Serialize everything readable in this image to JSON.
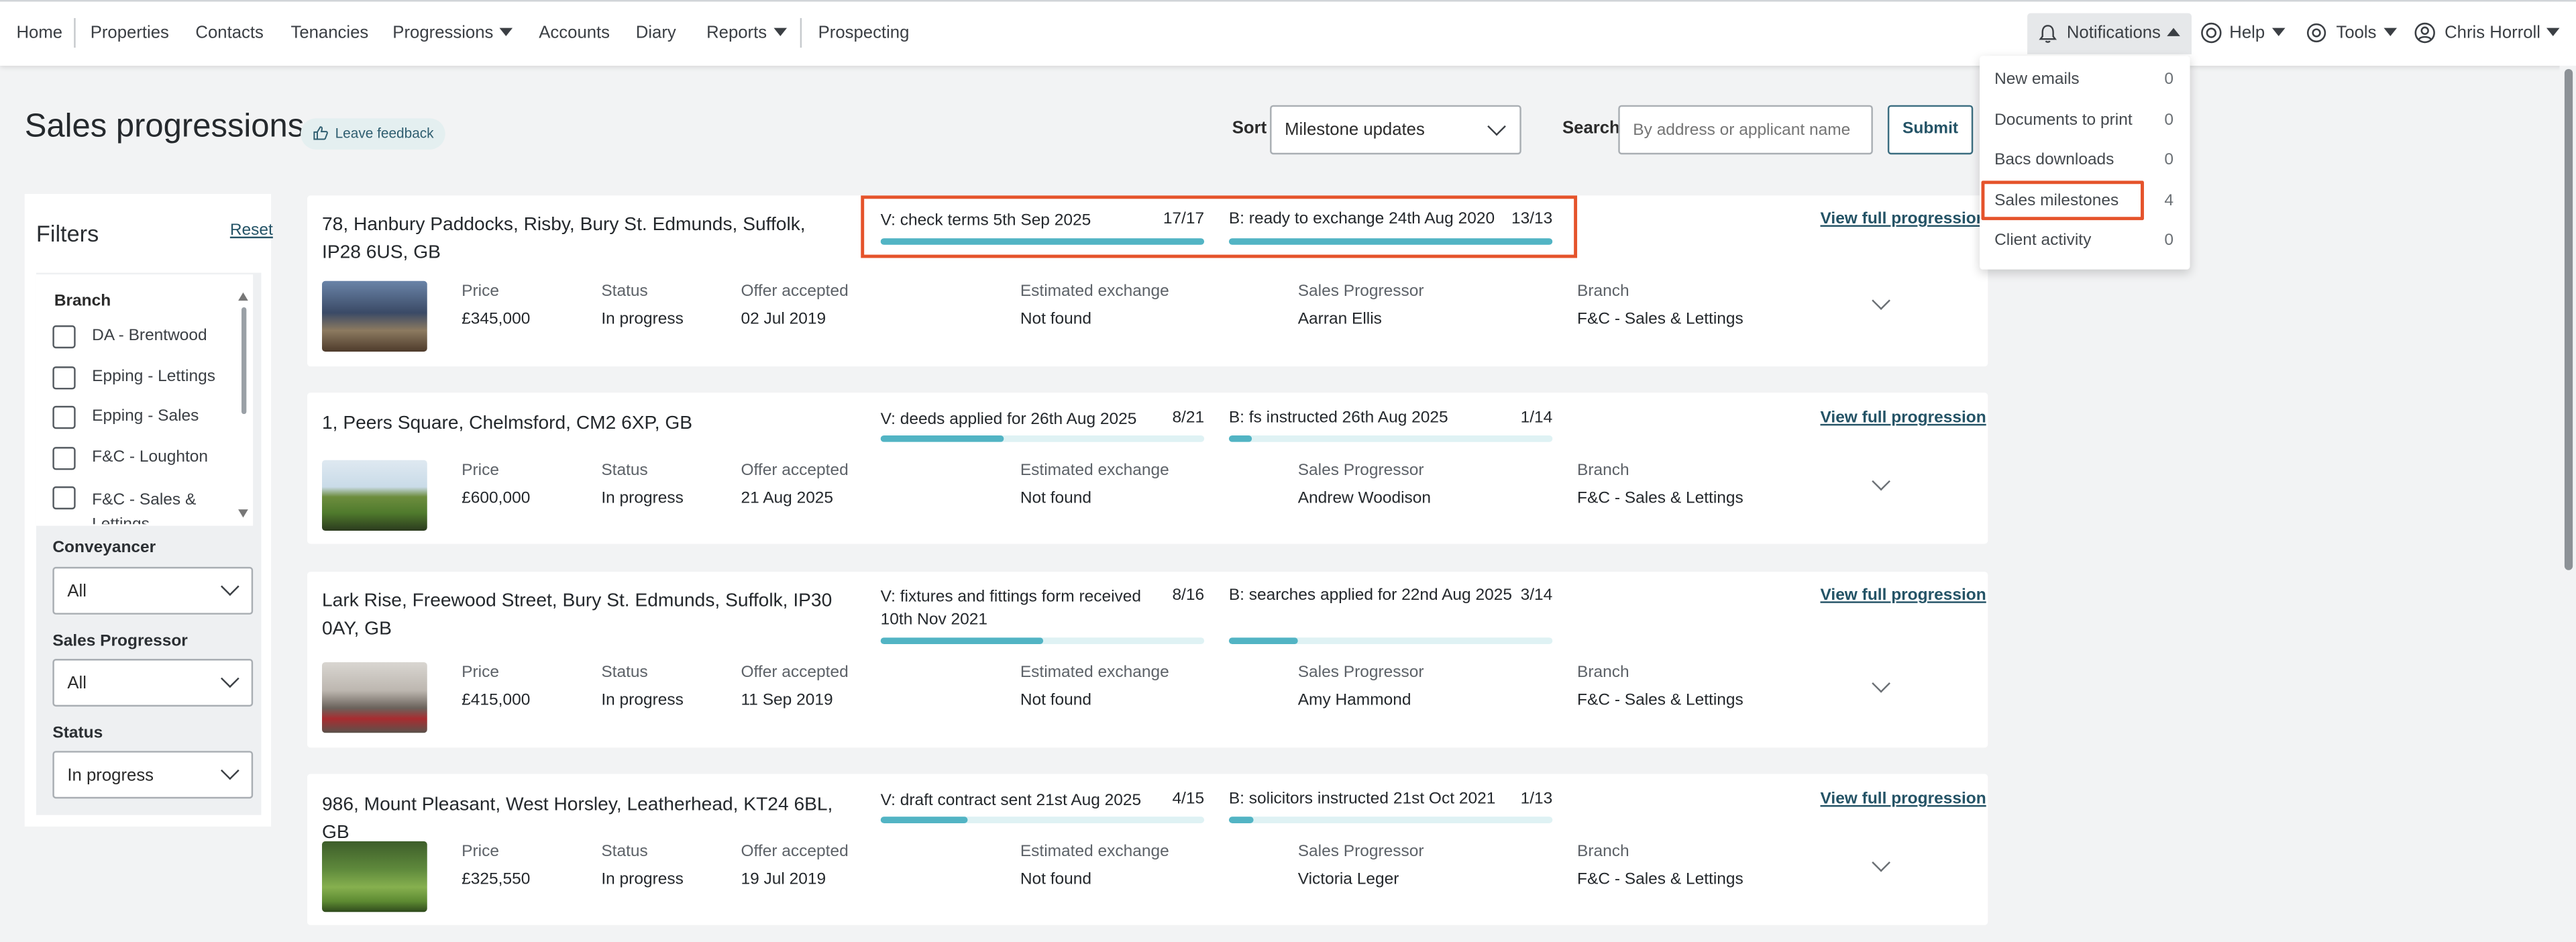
{
  "nav": {
    "home": "Home",
    "properties": "Properties",
    "contacts": "Contacts",
    "tenancies": "Tenancies",
    "progressions": "Progressions",
    "accounts": "Accounts",
    "diary": "Diary",
    "reports": "Reports",
    "prospecting": "Prospecting",
    "notifications": "Notifications",
    "help": "Help",
    "tools": "Tools",
    "user": "Chris Horroll"
  },
  "notifications_menu": [
    {
      "label": "New emails",
      "count": "0"
    },
    {
      "label": "Documents to print",
      "count": "0"
    },
    {
      "label": "Bacs downloads",
      "count": "0"
    },
    {
      "label": "Sales milestones",
      "count": "4"
    },
    {
      "label": "Client activity",
      "count": "0"
    }
  ],
  "page": {
    "title": "Sales progressions",
    "feedback": "Leave feedback",
    "sort_label": "Sort",
    "sort_value": "Milestone updates",
    "search_label": "Search",
    "search_placeholder": "By address or applicant name",
    "submit": "Submit"
  },
  "filters": {
    "title": "Filters",
    "reset": "Reset",
    "branch_label": "Branch",
    "branches": [
      "DA - Brentwood",
      "Epping - Lettings",
      "Epping - Sales",
      "F&C - Loughton",
      "F&C - Sales &",
      "Lettings"
    ],
    "conveyancer_label": "Conveyancer",
    "conveyancer_value": "All",
    "progressor_label": "Sales Progressor",
    "progressor_value": "All",
    "status_label": "Status",
    "status_value": "In progress"
  },
  "field_labels": {
    "price": "Price",
    "status": "Status",
    "offer": "Offer accepted",
    "exchange": "Estimated exchange",
    "progressor": "Sales Progressor",
    "branch": "Branch",
    "view": "View full progression"
  },
  "cards": [
    {
      "address": "78, Hanbury Paddocks, Risby, Bury St. Edmunds, Suffolk, IP28 6US, GB",
      "vendor_milestone": "V: check terms 5th Sep 2025",
      "vendor_count": "17/17",
      "vendor_progress": 1.0,
      "buyer_milestone": "B: ready to exchange 24th Aug 2020",
      "buyer_count": "13/13",
      "buyer_progress": 1.0,
      "price": "£345,000",
      "status": "In progress",
      "offer_accepted": "02 Jul 2019",
      "estimated_exchange": "Not found",
      "sales_progressor": "Aarran Ellis",
      "branch": "F&C - Sales & Lettings"
    },
    {
      "address": "1, Peers Square, Chelmsford, CM2 6XP, GB",
      "vendor_milestone": "V: deeds applied for 26th Aug 2025",
      "vendor_count": "8/21",
      "vendor_progress": 0.381,
      "buyer_milestone": "B: fs instructed 26th Aug 2025",
      "buyer_count": "1/14",
      "buyer_progress": 0.071,
      "price": "£600,000",
      "status": "In progress",
      "offer_accepted": "21 Aug 2025",
      "estimated_exchange": "Not found",
      "sales_progressor": "Andrew Woodison",
      "branch": "F&C - Sales & Lettings"
    },
    {
      "address": "Lark Rise, Freewood Street, Bury St. Edmunds, Suffolk, IP30 0AY, GB",
      "vendor_milestone": "V: fixtures and fittings form received 10th Nov 2021",
      "vendor_count": "8/16",
      "vendor_progress": 0.5,
      "buyer_milestone": "B: searches applied for 22nd Aug 2025",
      "buyer_count": "3/14",
      "buyer_progress": 0.214,
      "price": "£415,000",
      "status": "In progress",
      "offer_accepted": "11 Sep 2019",
      "estimated_exchange": "Not found",
      "sales_progressor": "Amy Hammond",
      "branch": "F&C - Sales & Lettings"
    },
    {
      "address": "986, Mount Pleasant, West Horsley, Leatherhead, KT24 6BL, GB",
      "vendor_milestone": "V: draft contract sent 21st Aug 2025",
      "vendor_count": "4/15",
      "vendor_progress": 0.267,
      "buyer_milestone": "B: solicitors instructed 21st Oct 2021",
      "buyer_count": "1/13",
      "buyer_progress": 0.077,
      "price": "£325,550",
      "status": "In progress",
      "offer_accepted": "19 Jul 2019",
      "estimated_exchange": "Not found",
      "sales_progressor": "Victoria Leger",
      "branch": "F&C - Sales & Lettings"
    }
  ],
  "colors": {
    "accent": "#245366",
    "progress": "#52b4c4",
    "highlight": "#e5532b"
  }
}
